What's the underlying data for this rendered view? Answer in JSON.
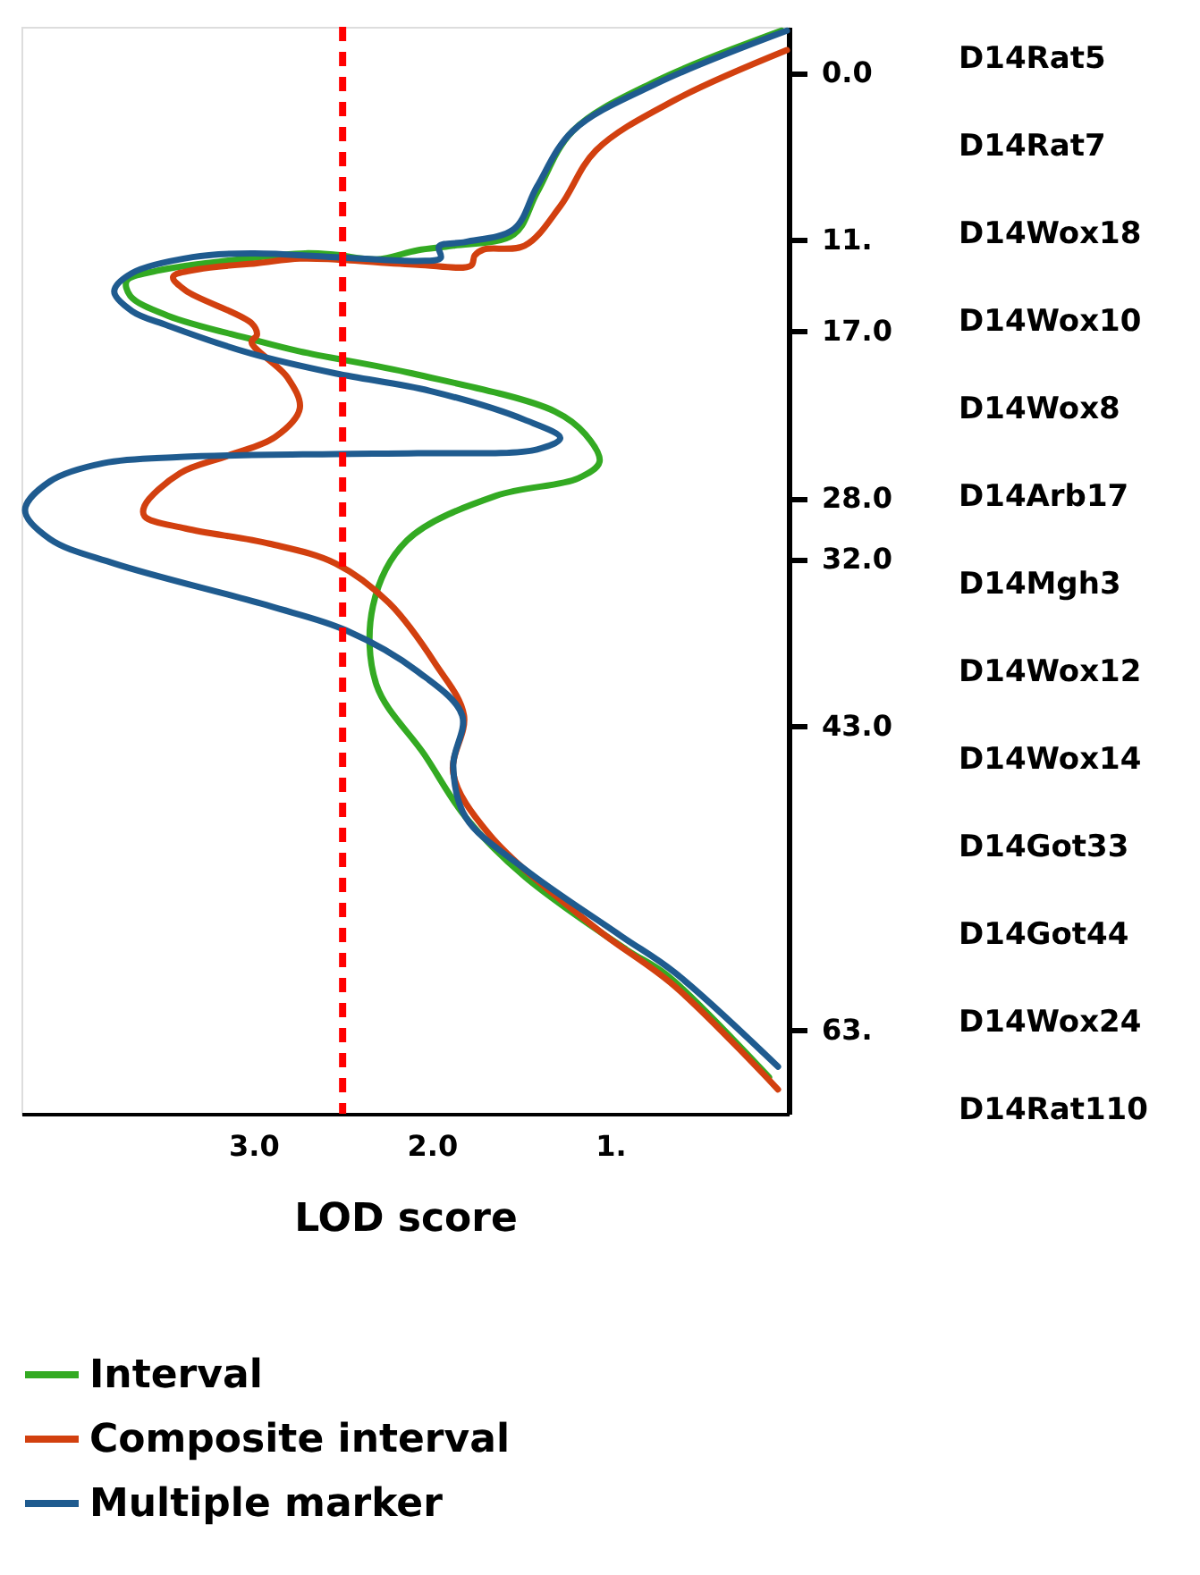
{
  "chart_data": {
    "type": "line",
    "orientation": "horizontal",
    "xlabel": "LOD score",
    "xlim": [
      4.3,
      0
    ],
    "xticks": [
      {
        "value": 3,
        "label": "3.0"
      },
      {
        "value": 2,
        "label": "2.0"
      },
      {
        "value": 1,
        "label": "1."
      }
    ],
    "ylim": [
      68.5,
      -3
    ],
    "yticks": [
      {
        "value": 0,
        "label": "0.0"
      },
      {
        "value": 11,
        "label": "11."
      },
      {
        "value": 17,
        "label": "17.0"
      },
      {
        "value": 28,
        "label": "28.0"
      },
      {
        "value": 32,
        "label": "32.0"
      },
      {
        "value": 43,
        "label": "43.0"
      },
      {
        "value": 63,
        "label": "63."
      }
    ],
    "grid": false,
    "legend": "bottom",
    "line_style": "solid",
    "marker": "none",
    "series": [
      {
        "name": "Interval",
        "color": "#33aa22",
        "x": [
          -2.75,
          0.55,
          3.85,
          7.9,
          10.65,
          11.4,
          11.7,
          12.3,
          12.0,
          11.9,
          12.3,
          13.05,
          13.7,
          14.7,
          16.0,
          17.55,
          18.35,
          19.8,
          22.3,
          23.8,
          25.6,
          26.7,
          27.85,
          30.8,
          35.1,
          40.3,
          44.9,
          49.0,
          52.9,
          57.7,
          59.4,
          66.1
        ],
        "values": [
          0.04,
          0.74,
          1.21,
          1.41,
          1.54,
          1.88,
          2.08,
          2.31,
          2.54,
          2.71,
          3.08,
          3.54,
          3.71,
          3.69,
          3.48,
          3.01,
          2.74,
          2.11,
          1.31,
          1.14,
          1.06,
          1.18,
          1.64,
          2.14,
          2.33,
          2.31,
          2.04,
          1.81,
          1.48,
          0.91,
          0.68,
          0.11
        ]
      },
      {
        "name": "Composite interval",
        "color": "#d2400f",
        "x": [
          -1.47,
          1.83,
          5.13,
          8.8,
          11.4,
          11.65,
          12.05,
          12.7,
          12.65,
          12.3,
          12.25,
          12.55,
          12.95,
          13.45,
          14.35,
          16.5,
          17.25,
          17.75,
          20.05,
          22.1,
          24.0,
          25.2,
          26.35,
          28.5,
          29.2,
          30.0,
          31.0,
          32.3,
          34.9,
          38.9,
          42.3,
          46.1,
          50.1,
          56.3,
          60.1,
          66.9
        ],
        "values": [
          0.01,
          0.64,
          1.08,
          1.28,
          1.48,
          1.71,
          1.76,
          1.78,
          2.08,
          2.54,
          2.74,
          2.98,
          3.31,
          3.45,
          3.38,
          3.01,
          2.98,
          3.01,
          2.81,
          2.74,
          2.88,
          3.14,
          3.41,
          3.61,
          3.61,
          3.38,
          2.91,
          2.54,
          2.24,
          1.98,
          1.82,
          1.88,
          1.68,
          1.08,
          0.64,
          0.06
        ]
      },
      {
        "name": "Multiple marker",
        "color": "#1f5b8f",
        "x": [
          -2.75,
          0.73,
          3.85,
          7.5,
          10.3,
          11.15,
          11.45,
          12.2,
          12.4,
          12.15,
          11.9,
          12.15,
          13.2,
          14.4,
          15.7,
          16.65,
          18.5,
          19.8,
          20.95,
          22.85,
          24.05,
          24.8,
          25.05,
          25.1,
          25.3,
          25.7,
          26.9,
          28.8,
          30.7,
          32.3,
          35.1,
          36.7,
          39.4,
          42.3,
          45.6,
          49.0,
          52.4,
          56.8,
          59.2,
          65.4
        ],
        "values": [
          0.01,
          0.74,
          1.21,
          1.41,
          1.54,
          1.81,
          1.96,
          1.95,
          2.08,
          2.54,
          3.01,
          3.34,
          3.68,
          3.78,
          3.68,
          3.48,
          3.01,
          2.54,
          2.01,
          1.48,
          1.28,
          1.41,
          2.08,
          2.54,
          3.41,
          3.84,
          4.14,
          4.28,
          4.14,
          3.78,
          2.91,
          2.48,
          2.08,
          1.83,
          1.88,
          1.81,
          1.48,
          0.94,
          0.64,
          0.06
        ]
      }
    ],
    "ref_lines": [
      {
        "axis": "x",
        "value": 2.5,
        "color": "#ff0000",
        "line_style": "dashed"
      }
    ],
    "annotations": [
      "D14Rat5",
      "D14Rat7",
      "D14Wox18",
      "D14Wox10",
      "D14Wox8",
      "D14Arb17",
      "D14Mgh3",
      "D14Wox12",
      "D14Wox14",
      "D14Got33",
      "D14Got44",
      "D14Wox24",
      "D14Rat110"
    ]
  }
}
